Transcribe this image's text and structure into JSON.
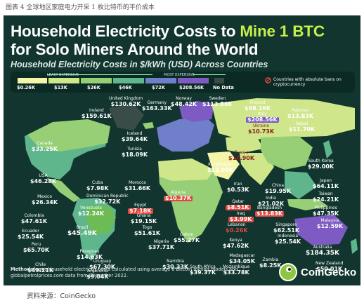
{
  "document": {
    "caption": "图表 4 全球地区家庭电力开采 1 枚比特币的平价成本",
    "source": "资料来源：CoinGecko"
  },
  "infographic": {
    "title_line1_prefix": "Household Electricity Costs to ",
    "title_line1_highlight": "Mine 1 BTC",
    "title_line2": "for Solo Miners Around the World",
    "subtitle": "Household Electricity Costs in $/kWh (USD) Across Countries",
    "legend": {
      "least_expensive": "LEAST EXPENSIVE",
      "most_expensive": "MOST EXPENSIVE",
      "ban_text": "Countries with absolute bans on cryptocurrency",
      "bins": [
        {
          "label": "$0.26K",
          "color": "#f4f5a8"
        },
        {
          "label": "$13K",
          "color": "#cfe68a"
        },
        {
          "label": "$26K",
          "color": "#96cf76"
        },
        {
          "label": "$46K",
          "color": "#5fb58c"
        },
        {
          "label": "$72K",
          "color": "#6f7fc9"
        },
        {
          "label": "$208.56K",
          "color": "#7d5bc2"
        },
        {
          "label": "No Data",
          "color": "#3a4c48"
        }
      ]
    },
    "countries": [
      {
        "name": "United Kingdom",
        "value": "$130.62K"
      },
      {
        "name": "Germany",
        "value": "$163.33K"
      },
      {
        "name": "Norway",
        "value": "$48.42K"
      },
      {
        "name": "Sweden",
        "value": "$113.86K"
      },
      {
        "name": "Finland",
        "value": "$98.16K"
      },
      {
        "name": "Ireland",
        "value": "$159.61K"
      },
      {
        "name": "Italy",
        "value": "$208.56K"
      },
      {
        "name": "Pakistan",
        "value": "$13.83K"
      },
      {
        "name": "Ukraine",
        "value": "$10.73K"
      },
      {
        "name": "Nepal",
        "value": "$11.70K"
      },
      {
        "name": "Canada",
        "value": "$33.25K"
      },
      {
        "name": "Iceland",
        "value": "$39.64K"
      },
      {
        "name": "Tunisia",
        "value": "$18.09K"
      },
      {
        "name": "Russia",
        "value": "$14.90K"
      },
      {
        "name": "CoinGecko",
        "value": ""
      },
      {
        "name": "South Korea",
        "value": "$29.00K"
      },
      {
        "name": "USA",
        "value": "$46.28K"
      },
      {
        "name": "Kazakhstan",
        "value": "$12.90K"
      },
      {
        "name": "Cuba",
        "value": "$7.98K"
      },
      {
        "name": "Morocco",
        "value": "$31.66K"
      },
      {
        "name": "Iran",
        "value": "$0.53K"
      },
      {
        "name": "China",
        "value": "$19.95K"
      },
      {
        "name": "Japan",
        "value": "$64.11K"
      },
      {
        "name": "Taiwan",
        "value": "$24.21K"
      },
      {
        "name": "Dominican Republic",
        "value": "$32.72K"
      },
      {
        "name": "Algeria",
        "value": "$10.37K"
      },
      {
        "name": "India",
        "value": "$21.02K"
      },
      {
        "name": "Mexico",
        "value": "$26.34K"
      },
      {
        "name": "Venezuela",
        "value": "$12.24K"
      },
      {
        "name": "Egypt",
        "value": "$7.18K"
      },
      {
        "name": "Philippines",
        "value": "$47.35K"
      },
      {
        "name": "Qatar",
        "value": "$8.51K"
      },
      {
        "name": "Bangladesh",
        "value": "$13.83K"
      },
      {
        "name": "Iraq",
        "value": "$3.99K"
      },
      {
        "name": "Ghana",
        "value": "$19.15K"
      },
      {
        "name": "Colombia",
        "value": "$47.61K"
      },
      {
        "name": "Lebanon",
        "value": "$0.26K"
      },
      {
        "name": "Malaysia",
        "value": "$12.59K"
      },
      {
        "name": "Togo",
        "value": "$51.61K"
      },
      {
        "name": "Singapore",
        "value": "$62.51K"
      },
      {
        "name": "Ecuador",
        "value": "$25.54K"
      },
      {
        "name": "Brazil",
        "value": "$45.49K"
      },
      {
        "name": "Gabon",
        "value": "$55.27K"
      },
      {
        "name": "Kenya",
        "value": "$47.62K"
      },
      {
        "name": "Indonesia",
        "value": "$25.54K"
      },
      {
        "name": "Peru",
        "value": "$65.70K"
      },
      {
        "name": "Nigeria",
        "value": "$37.71K"
      },
      {
        "name": "Madagascar",
        "value": "$34.05K"
      },
      {
        "name": "Australia",
        "value": "$184.35K"
      },
      {
        "name": "Paraguay",
        "value": "$14.63K"
      },
      {
        "name": "Mozambique",
        "value": "$33.78K"
      },
      {
        "name": "Zambia",
        "value": "$8.25K"
      },
      {
        "name": "New Zealand",
        "value": "$50.01K"
      },
      {
        "name": "Chile",
        "value": "$49.21K"
      },
      {
        "name": "Uruguay",
        "value": "$67.30K"
      },
      {
        "name": "Namibia",
        "value": "$30.33K"
      },
      {
        "name": "South Africa",
        "value": "$39.37K"
      },
      {
        "name": "Argentina",
        "value": "$9.04K"
      }
    ],
    "methodology_label": "Methodology:",
    "methodology_text": " Household electricity costs calculated using average 8 Bitcoin mining models and globalpetrolprices.com data from December 2022.",
    "brand": "CoinGecko"
  }
}
